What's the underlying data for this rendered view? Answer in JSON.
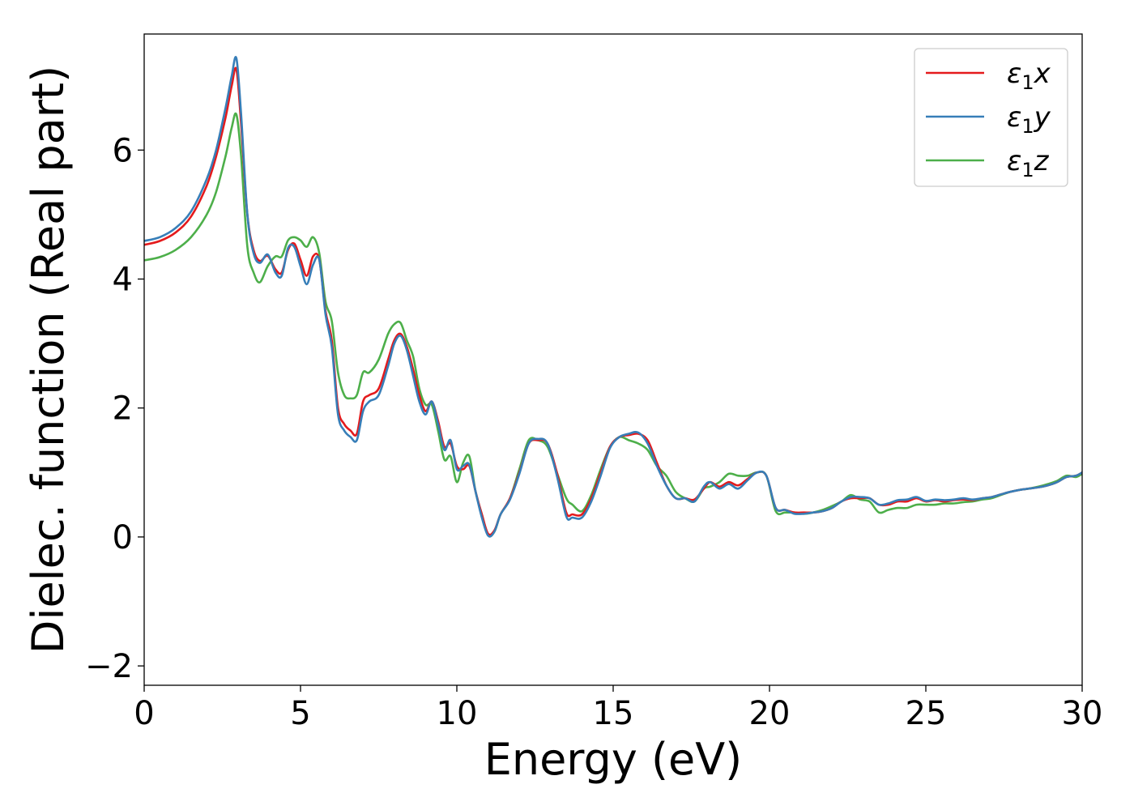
{
  "chart_data": {
    "type": "line",
    "xlabel": "Energy (eV)",
    "ylabel": "Dielec. function (Real part)",
    "xlim": [
      0,
      30
    ],
    "ylim": [
      -2.3,
      7.8
    ],
    "xticks": [
      0,
      5,
      10,
      15,
      20,
      25,
      30
    ],
    "yticks": [
      -2,
      0,
      2,
      4,
      6
    ],
    "xtick_labels": [
      "0",
      "5",
      "10",
      "15",
      "20",
      "25",
      "30"
    ],
    "ytick_labels": [
      "−2",
      "0",
      "2",
      "4",
      "6"
    ],
    "grid": false,
    "legend_position": "top-right",
    "series": [
      {
        "name": "ε1x",
        "name_base": "ε",
        "name_sub": "1",
        "name_suffix": "x",
        "color": "#e41a1c",
        "x": [
          0,
          0.5,
          1.0,
          1.5,
          2.0,
          2.3,
          2.6,
          2.8,
          2.95,
          3.1,
          3.3,
          3.5,
          3.7,
          3.95,
          4.2,
          4.4,
          4.6,
          4.8,
          5.0,
          5.2,
          5.4,
          5.6,
          5.8,
          6.0,
          6.2,
          6.4,
          6.6,
          6.8,
          7.0,
          7.2,
          7.5,
          7.8,
          8.0,
          8.2,
          8.4,
          8.6,
          8.8,
          9.0,
          9.2,
          9.4,
          9.6,
          9.8,
          10.0,
          10.2,
          10.4,
          10.6,
          10.8,
          11.0,
          11.2,
          11.4,
          11.7,
          12.0,
          12.3,
          12.6,
          12.9,
          13.2,
          13.5,
          13.7,
          14.0,
          14.3,
          14.6,
          14.9,
          15.2,
          15.5,
          15.8,
          16.1,
          16.4,
          16.7,
          17.0,
          17.3,
          17.6,
          17.9,
          18.1,
          18.4,
          18.7,
          19.0,
          19.3,
          19.6,
          19.9,
          20.2,
          20.5,
          20.8,
          21.1,
          21.4,
          21.7,
          22.0,
          22.3,
          22.6,
          22.9,
          23.2,
          23.5,
          23.8,
          24.1,
          24.4,
          24.7,
          25.0,
          25.3,
          25.6,
          25.9,
          26.2,
          26.5,
          26.8,
          27.1,
          27.4,
          27.7,
          28.0,
          28.3,
          28.6,
          28.9,
          29.2,
          29.5,
          29.8,
          30.0
        ],
        "y": [
          4.53,
          4.59,
          4.72,
          4.97,
          5.45,
          5.9,
          6.5,
          7.0,
          7.25,
          6.4,
          5.0,
          4.45,
          4.28,
          4.36,
          4.15,
          4.1,
          4.45,
          4.55,
          4.3,
          4.05,
          4.35,
          4.3,
          3.5,
          3.05,
          2.0,
          1.75,
          1.65,
          1.6,
          2.1,
          2.2,
          2.3,
          2.75,
          3.05,
          3.15,
          2.95,
          2.6,
          2.2,
          1.95,
          2.1,
          1.8,
          1.4,
          1.45,
          1.1,
          1.05,
          1.1,
          0.7,
          0.35,
          0.05,
          0.1,
          0.35,
          0.6,
          1.0,
          1.45,
          1.5,
          1.45,
          1.0,
          0.38,
          0.35,
          0.35,
          0.6,
          1.0,
          1.4,
          1.55,
          1.58,
          1.6,
          1.5,
          1.15,
          0.8,
          0.6,
          0.6,
          0.58,
          0.75,
          0.85,
          0.78,
          0.85,
          0.8,
          0.9,
          1.0,
          0.95,
          0.45,
          0.42,
          0.38,
          0.38,
          0.38,
          0.4,
          0.45,
          0.55,
          0.6,
          0.6,
          0.6,
          0.5,
          0.5,
          0.55,
          0.55,
          0.6,
          0.55,
          0.57,
          0.55,
          0.57,
          0.58,
          0.57,
          0.6,
          0.62,
          0.66,
          0.7,
          0.73,
          0.75,
          0.77,
          0.8,
          0.85,
          0.93,
          0.95,
          1.0
        ]
      },
      {
        "name": "ε1y",
        "name_base": "ε",
        "name_sub": "1",
        "name_suffix": "y",
        "color": "#377eb8",
        "x": [
          0,
          0.5,
          1.0,
          1.5,
          2.0,
          2.3,
          2.6,
          2.8,
          2.95,
          3.1,
          3.3,
          3.5,
          3.7,
          3.95,
          4.2,
          4.4,
          4.6,
          4.8,
          5.0,
          5.2,
          5.4,
          5.6,
          5.8,
          6.0,
          6.2,
          6.4,
          6.6,
          6.8,
          7.0,
          7.2,
          7.5,
          7.8,
          8.0,
          8.2,
          8.4,
          8.6,
          8.8,
          9.0,
          9.2,
          9.4,
          9.6,
          9.8,
          10.0,
          10.2,
          10.4,
          10.6,
          10.8,
          11.0,
          11.2,
          11.4,
          11.7,
          12.0,
          12.3,
          12.6,
          12.9,
          13.2,
          13.5,
          13.7,
          14.0,
          14.3,
          14.6,
          14.9,
          15.2,
          15.5,
          15.8,
          16.1,
          16.4,
          16.7,
          17.0,
          17.3,
          17.6,
          17.9,
          18.1,
          18.4,
          18.7,
          19.0,
          19.3,
          19.6,
          19.9,
          20.2,
          20.5,
          20.8,
          21.1,
          21.4,
          21.7,
          22.0,
          22.3,
          22.6,
          22.9,
          23.2,
          23.5,
          23.8,
          24.1,
          24.4,
          24.7,
          25.0,
          25.3,
          25.6,
          25.9,
          26.2,
          26.5,
          26.8,
          27.1,
          27.4,
          27.7,
          28.0,
          28.3,
          28.6,
          28.9,
          29.2,
          29.5,
          29.8,
          30.0
        ],
        "y": [
          4.59,
          4.65,
          4.79,
          5.05,
          5.55,
          6.0,
          6.65,
          7.15,
          7.42,
          6.55,
          5.0,
          4.4,
          4.25,
          4.38,
          4.1,
          4.05,
          4.48,
          4.5,
          4.2,
          3.92,
          4.22,
          4.3,
          3.45,
          2.95,
          1.9,
          1.65,
          1.55,
          1.5,
          1.95,
          2.1,
          2.2,
          2.65,
          3.0,
          3.12,
          2.9,
          2.5,
          2.1,
          1.9,
          2.1,
          1.75,
          1.35,
          1.5,
          1.05,
          1.1,
          1.12,
          0.7,
          0.3,
          0.02,
          0.08,
          0.35,
          0.58,
          0.98,
          1.45,
          1.52,
          1.45,
          0.95,
          0.32,
          0.3,
          0.3,
          0.55,
          0.95,
          1.38,
          1.55,
          1.6,
          1.62,
          1.45,
          1.1,
          0.8,
          0.6,
          0.6,
          0.55,
          0.78,
          0.85,
          0.75,
          0.82,
          0.75,
          0.88,
          1.0,
          0.95,
          0.45,
          0.42,
          0.36,
          0.36,
          0.38,
          0.4,
          0.45,
          0.55,
          0.62,
          0.62,
          0.6,
          0.5,
          0.52,
          0.57,
          0.58,
          0.62,
          0.56,
          0.58,
          0.57,
          0.58,
          0.6,
          0.58,
          0.6,
          0.62,
          0.66,
          0.7,
          0.73,
          0.75,
          0.77,
          0.8,
          0.85,
          0.93,
          0.95,
          1.0
        ]
      },
      {
        "name": "ε1z",
        "name_base": "ε",
        "name_sub": "1",
        "name_suffix": "z",
        "color": "#4daf4a",
        "x": [
          0,
          0.5,
          1.0,
          1.5,
          2.0,
          2.3,
          2.6,
          2.8,
          2.95,
          3.1,
          3.3,
          3.5,
          3.7,
          3.95,
          4.2,
          4.4,
          4.6,
          4.8,
          5.0,
          5.2,
          5.4,
          5.6,
          5.8,
          6.0,
          6.2,
          6.4,
          6.6,
          6.8,
          7.0,
          7.2,
          7.5,
          7.8,
          8.0,
          8.2,
          8.4,
          8.6,
          8.8,
          9.0,
          9.2,
          9.4,
          9.6,
          9.8,
          10.0,
          10.2,
          10.4,
          10.6,
          10.8,
          11.0,
          11.2,
          11.4,
          11.7,
          12.0,
          12.3,
          12.6,
          12.9,
          13.2,
          13.5,
          13.7,
          14.0,
          14.3,
          14.6,
          14.9,
          15.2,
          15.5,
          15.8,
          16.1,
          16.4,
          16.7,
          17.0,
          17.3,
          17.6,
          17.9,
          18.1,
          18.4,
          18.7,
          19.0,
          19.3,
          19.6,
          19.9,
          20.2,
          20.5,
          20.8,
          21.1,
          21.4,
          21.7,
          22.0,
          22.3,
          22.6,
          22.9,
          23.2,
          23.5,
          23.8,
          24.1,
          24.4,
          24.7,
          25.0,
          25.3,
          25.6,
          25.9,
          26.2,
          26.5,
          26.8,
          27.1,
          27.4,
          27.7,
          28.0,
          28.3,
          28.6,
          28.9,
          29.2,
          29.5,
          29.8,
          30.0
        ],
        "y": [
          4.29,
          4.34,
          4.45,
          4.65,
          5.0,
          5.35,
          5.9,
          6.35,
          6.55,
          5.9,
          4.5,
          4.1,
          3.95,
          4.2,
          4.35,
          4.35,
          4.6,
          4.65,
          4.6,
          4.5,
          4.65,
          4.4,
          3.65,
          3.35,
          2.55,
          2.2,
          2.15,
          2.2,
          2.55,
          2.55,
          2.75,
          3.15,
          3.3,
          3.32,
          3.05,
          2.8,
          2.3,
          2.05,
          2.05,
          1.65,
          1.2,
          1.25,
          0.85,
          1.15,
          1.25,
          0.7,
          0.35,
          0.03,
          0.08,
          0.35,
          0.6,
          1.05,
          1.5,
          1.5,
          1.4,
          1.0,
          0.6,
          0.5,
          0.4,
          0.65,
          1.05,
          1.4,
          1.55,
          1.5,
          1.45,
          1.35,
          1.1,
          0.95,
          0.7,
          0.6,
          0.55,
          0.75,
          0.78,
          0.85,
          0.98,
          0.95,
          0.95,
          1.0,
          0.95,
          0.4,
          0.38,
          0.38,
          0.36,
          0.38,
          0.42,
          0.48,
          0.55,
          0.65,
          0.58,
          0.55,
          0.38,
          0.42,
          0.45,
          0.45,
          0.5,
          0.5,
          0.5,
          0.52,
          0.52,
          0.54,
          0.55,
          0.58,
          0.6,
          0.65,
          0.7,
          0.73,
          0.75,
          0.78,
          0.82,
          0.87,
          0.95,
          0.93,
          0.98
        ]
      }
    ]
  }
}
